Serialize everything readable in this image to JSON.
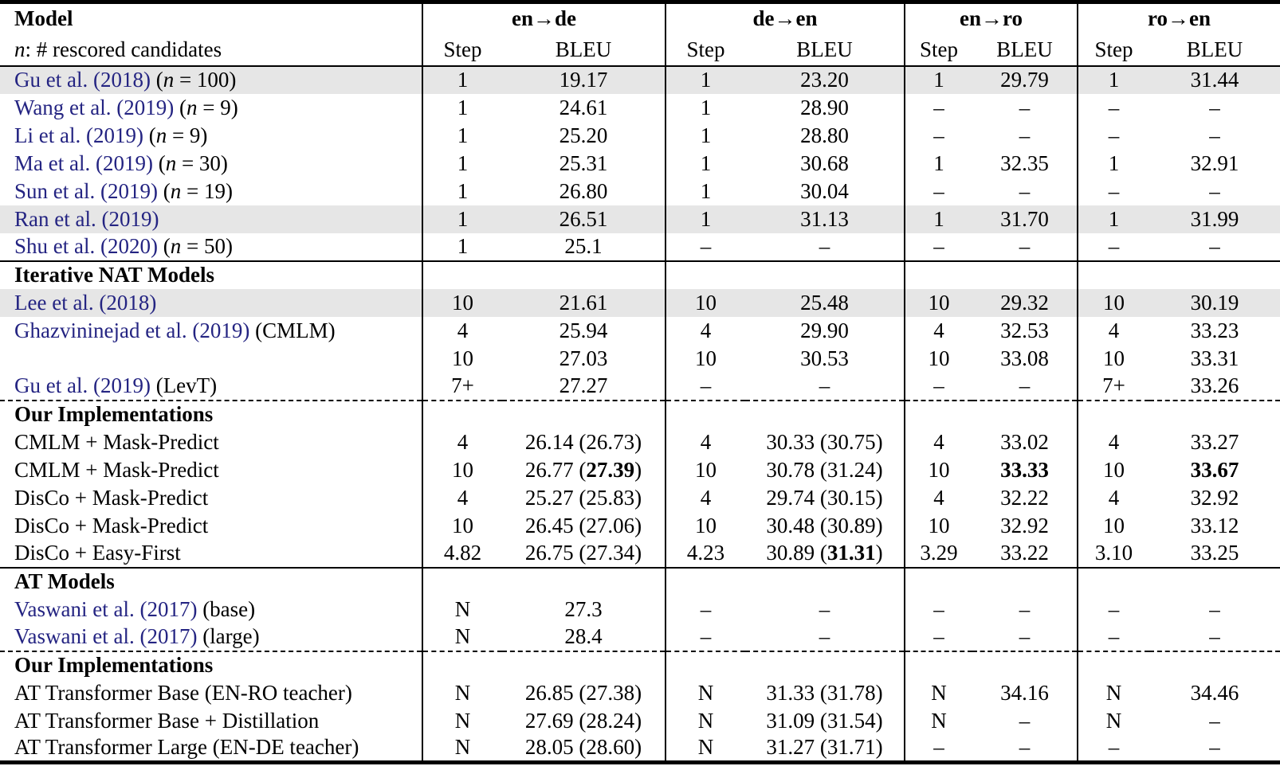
{
  "colors": {
    "cite": "#242482",
    "highlight": "#e6e6e6"
  },
  "header": {
    "model_title": "Model",
    "model_subtitle_n": "n",
    "model_subtitle_rest": ": # rescored candidates",
    "groups": [
      "en→de",
      "de→en",
      "en→ro",
      "ro→en"
    ],
    "step_label": "Step",
    "bleu_label": "BLEU"
  },
  "rows": [
    {
      "type": "data",
      "highlight": true,
      "model": [
        {
          "t": "Gu et al. (2018)",
          "c": "cite"
        },
        {
          "t": " ("
        },
        {
          "t": "n",
          "c": "math"
        },
        {
          "t": " = 100)"
        }
      ],
      "cells": [
        "1",
        "19.17",
        "1",
        "23.20",
        "1",
        "29.79",
        "1",
        "31.44"
      ]
    },
    {
      "type": "data",
      "model": [
        {
          "t": "Wang et al. (2019)",
          "c": "cite"
        },
        {
          "t": " ("
        },
        {
          "t": "n",
          "c": "math"
        },
        {
          "t": " = 9)"
        }
      ],
      "cells": [
        "1",
        "24.61",
        "1",
        "28.90",
        "–",
        "–",
        "–",
        "–"
      ]
    },
    {
      "type": "data",
      "model": [
        {
          "t": "Li et al. (2019)",
          "c": "cite"
        },
        {
          "t": " ("
        },
        {
          "t": "n",
          "c": "math"
        },
        {
          "t": " = 9)"
        }
      ],
      "cells": [
        "1",
        "25.20",
        "1",
        "28.80",
        "–",
        "–",
        "–",
        "–"
      ]
    },
    {
      "type": "data",
      "model": [
        {
          "t": "Ma et al. (2019)",
          "c": "cite"
        },
        {
          "t": " ("
        },
        {
          "t": "n",
          "c": "math"
        },
        {
          "t": " = 30)"
        }
      ],
      "cells": [
        "1",
        "25.31",
        "1",
        "30.68",
        "1",
        "32.35",
        "1",
        "32.91"
      ]
    },
    {
      "type": "data",
      "model": [
        {
          "t": "Sun et al. (2019)",
          "c": "cite"
        },
        {
          "t": " ("
        },
        {
          "t": "n",
          "c": "math"
        },
        {
          "t": " = 19)"
        }
      ],
      "cells": [
        "1",
        "26.80",
        "1",
        "30.04",
        "–",
        "–",
        "–",
        "–"
      ]
    },
    {
      "type": "data",
      "highlight": true,
      "model": [
        {
          "t": "Ran et al. (2019)",
          "c": "cite"
        }
      ],
      "cells": [
        "1",
        "26.51",
        "1",
        "31.13",
        "1",
        "31.70",
        "1",
        "31.99"
      ]
    },
    {
      "type": "data",
      "model": [
        {
          "t": "Shu et al. (2020)",
          "c": "cite"
        },
        {
          "t": " ("
        },
        {
          "t": "n",
          "c": "math"
        },
        {
          "t": " = 50)"
        }
      ],
      "cells": [
        "1",
        "25.1",
        "–",
        "–",
        "–",
        "–",
        "–",
        "–"
      ]
    },
    {
      "type": "section",
      "rule": "solid",
      "title": "Iterative NAT Models"
    },
    {
      "type": "data",
      "highlight": true,
      "model": [
        {
          "t": "Lee et al. (2018)",
          "c": "cite"
        }
      ],
      "cells": [
        "10",
        "21.61",
        "10",
        "25.48",
        "10",
        "29.32",
        "10",
        "30.19"
      ]
    },
    {
      "type": "data",
      "model": [
        {
          "t": "Ghazvininejad et al. (2019)",
          "c": "cite"
        },
        {
          "t": " (CMLM)"
        }
      ],
      "cells": [
        "4",
        "25.94",
        "4",
        "29.90",
        "4",
        "32.53",
        "4",
        "33.23"
      ]
    },
    {
      "type": "data",
      "model": [],
      "cells": [
        "10",
        "27.03",
        "10",
        "30.53",
        "10",
        "33.08",
        "10",
        "33.31"
      ]
    },
    {
      "type": "data",
      "model": [
        {
          "t": "Gu et al. (2019)",
          "c": "cite"
        },
        {
          "t": " (LevT)"
        }
      ],
      "cells": [
        "7+",
        "27.27",
        "–",
        "–",
        "–",
        "–",
        "7+",
        "33.26"
      ]
    },
    {
      "type": "section",
      "rule": "dashed",
      "title": "Our Implementations"
    },
    {
      "type": "data",
      "model": [
        {
          "t": "CMLM + Mask-Predict"
        }
      ],
      "cells": [
        "4",
        "26.14 (26.73)",
        "4",
        "30.33 (30.75)",
        "4",
        "33.02",
        "4",
        "33.27"
      ]
    },
    {
      "type": "data",
      "model": [
        {
          "t": "CMLM + Mask-Predict"
        }
      ],
      "cells": [
        "10",
        [
          {
            "t": "26.77 ("
          },
          {
            "t": "27.39",
            "c": "bold"
          },
          {
            "t": ")"
          }
        ],
        "10",
        "30.78 (31.24)",
        "10",
        [
          {
            "t": "33.33",
            "c": "bold"
          }
        ],
        "10",
        [
          {
            "t": "33.67",
            "c": "bold"
          }
        ]
      ]
    },
    {
      "type": "data",
      "model": [
        {
          "t": "DisCo + Mask-Predict"
        }
      ],
      "cells": [
        "4",
        "25.27 (25.83)",
        "4",
        "29.74 (30.15)",
        "4",
        "32.22",
        "4",
        "32.92"
      ]
    },
    {
      "type": "data",
      "model": [
        {
          "t": "DisCo + Mask-Predict"
        }
      ],
      "cells": [
        "10",
        "26.45 (27.06)",
        "10",
        "30.48 (30.89)",
        "10",
        "32.92",
        "10",
        "33.12"
      ]
    },
    {
      "type": "data",
      "model": [
        {
          "t": "DisCo + Easy-First"
        }
      ],
      "cells": [
        "4.82",
        "26.75 (27.34)",
        "4.23",
        [
          {
            "t": "30.89 ("
          },
          {
            "t": "31.31",
            "c": "bold"
          },
          {
            "t": ")"
          }
        ],
        "3.29",
        "33.22",
        "3.10",
        "33.25"
      ]
    },
    {
      "type": "section",
      "rule": "solid",
      "title": "AT Models"
    },
    {
      "type": "data",
      "model": [
        {
          "t": "Vaswani et al. (2017)",
          "c": "cite"
        },
        {
          "t": " (base)"
        }
      ],
      "cells": [
        "N",
        "27.3",
        "–",
        "–",
        "–",
        "–",
        "–",
        "–"
      ]
    },
    {
      "type": "data",
      "model": [
        {
          "t": "Vaswani et al. (2017)",
          "c": "cite"
        },
        {
          "t": " (large)"
        }
      ],
      "cells": [
        "N",
        "28.4",
        "–",
        "–",
        "–",
        "–",
        "–",
        "–"
      ]
    },
    {
      "type": "section",
      "rule": "dashed",
      "title": "Our Implementations"
    },
    {
      "type": "data",
      "model": [
        {
          "t": "AT Transformer Base (EN-RO teacher)"
        }
      ],
      "cells": [
        "N",
        "26.85 (27.38)",
        "N",
        "31.33 (31.78)",
        "N",
        "34.16",
        "N",
        "34.46"
      ]
    },
    {
      "type": "data",
      "model": [
        {
          "t": "AT Transformer Base + Distillation"
        }
      ],
      "cells": [
        "N",
        "27.69 (28.24)",
        "N",
        "31.09 (31.54)",
        "N",
        "–",
        "N",
        "–"
      ]
    },
    {
      "type": "data",
      "model": [
        {
          "t": "AT Transformer Large (EN-DE teacher)"
        }
      ],
      "cells": [
        "N",
        "28.05 (28.60)",
        "N",
        "31.27 (31.71)",
        "–",
        "–",
        "–",
        "–"
      ]
    }
  ]
}
